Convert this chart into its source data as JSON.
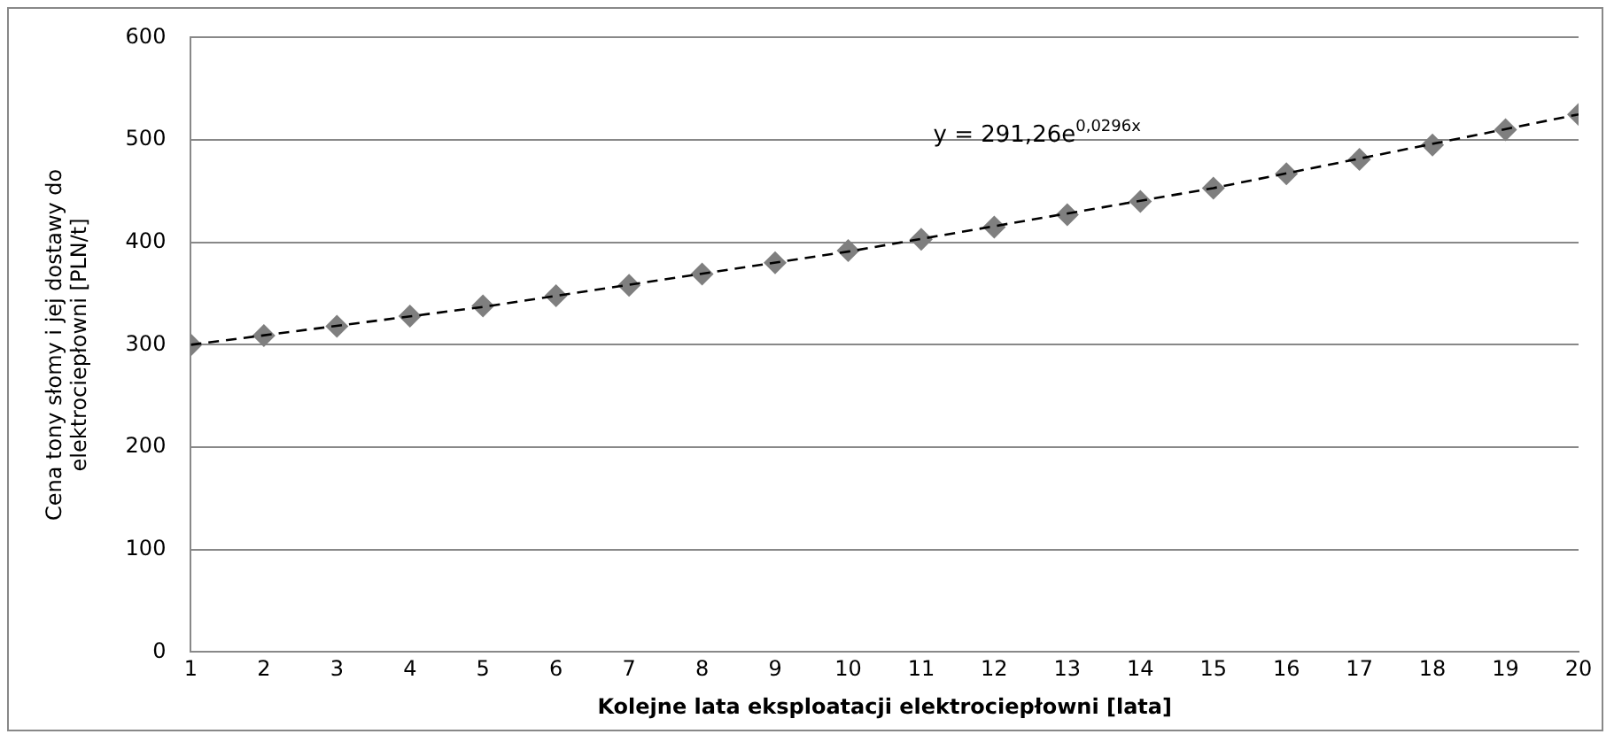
{
  "chart_data": {
    "type": "scatter",
    "xlabel": "Kolejne lata eksploatacji elektrociepłowni [lata]",
    "ylabel": "Cena tony słomy i jej dostawy do elektrociepłowni [PLN/t]",
    "x": [
      1,
      2,
      3,
      4,
      5,
      6,
      7,
      8,
      9,
      10,
      11,
      12,
      13,
      14,
      15,
      16,
      17,
      18,
      19,
      20
    ],
    "series": [
      {
        "type": "scatter",
        "color": "#7f7f7f",
        "marker": "diamond",
        "values": [
          300,
          309,
          318,
          328,
          338,
          348,
          358,
          369,
          380,
          392,
          403,
          415,
          427,
          440,
          453,
          467,
          481,
          495,
          510,
          525
        ]
      },
      {
        "type": "line",
        "color": "#000000",
        "marker": "none",
        "line_style": "dashed",
        "x": [
          1,
          5,
          10,
          15,
          20
        ],
        "values": [
          300,
          337,
          391,
          453,
          525
        ]
      }
    ],
    "xlim": [
      1,
      20
    ],
    "xticks": [
      1,
      2,
      3,
      4,
      5,
      6,
      7,
      8,
      9,
      10,
      11,
      12,
      13,
      14,
      15,
      16,
      17,
      18,
      19,
      20
    ],
    "ylim": [
      0,
      600
    ],
    "yticks": [
      0,
      100,
      200,
      300,
      400,
      500,
      600
    ],
    "grid": "y",
    "legend": false,
    "annotations": [
      "y = 291,26e$^{0,0296x}$"
    ]
  }
}
